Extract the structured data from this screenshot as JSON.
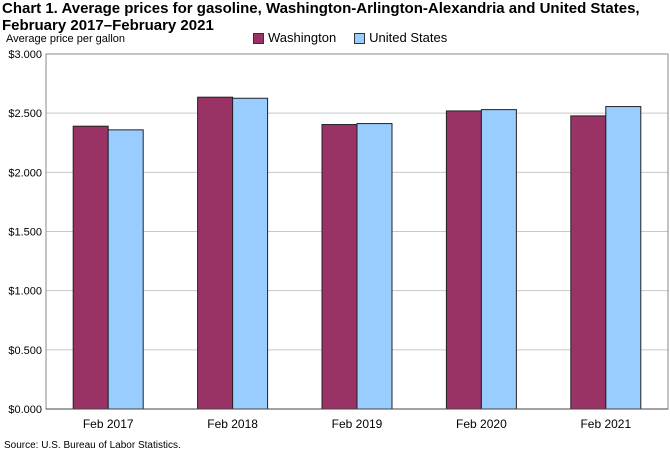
{
  "chart_data": {
    "type": "bar",
    "title": "Chart 1. Average prices for gasoline, Washington-Arlington-Alexandria and United States, February 2017–February 2021",
    "ylabel": "Average price per gallon",
    "xlabel": "",
    "categories": [
      "Feb 2017",
      "Feb 2018",
      "Feb 2019",
      "Feb 2020",
      "Feb 2021"
    ],
    "series": [
      {
        "name": "Washington",
        "color": "#993366",
        "values": [
          2.39,
          2.635,
          2.404,
          2.519,
          2.477
        ]
      },
      {
        "name": "United States",
        "color": "#99ccff",
        "values": [
          2.359,
          2.626,
          2.412,
          2.53,
          2.556
        ]
      }
    ],
    "ylim": [
      0,
      3
    ],
    "yticks": [
      "$0.000",
      "$0.500",
      "$1.000",
      "$1.500",
      "$2.000",
      "$2.500",
      "$3.000"
    ],
    "grid": true,
    "legend": "top-center",
    "source": "Source: U.S. Bureau of Labor Statistics."
  }
}
